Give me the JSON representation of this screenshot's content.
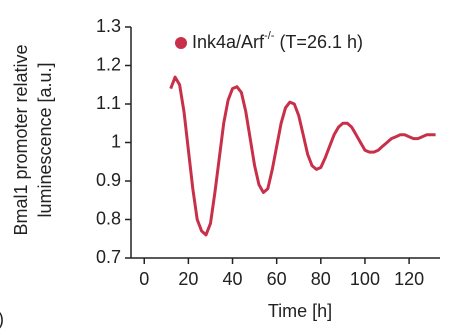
{
  "chart_data": {
    "type": "line",
    "ylabel": [
      "Bmal1 promoter relative",
      "luminescence [a.u.]"
    ],
    "xlabel": "Time [h]",
    "annotations": [
      "l)"
    ],
    "x": [
      12,
      14,
      16,
      18,
      20,
      22,
      24,
      26,
      28,
      30,
      32,
      34,
      36,
      38,
      40,
      42,
      44,
      46,
      48,
      50,
      52,
      54,
      56,
      58,
      60,
      62,
      64,
      66,
      68,
      70,
      72,
      74,
      76,
      78,
      80,
      82,
      84,
      86,
      88,
      90,
      92,
      94,
      96,
      98,
      100,
      102,
      104,
      106,
      108,
      110,
      112,
      114,
      116,
      118,
      120,
      122,
      124,
      126,
      128,
      130,
      132
    ],
    "series": [
      {
        "name": "Ink4a/Arf-/- (T=26.1 h)",
        "color": "#c8304a",
        "values": [
          1.14,
          1.17,
          1.15,
          1.08,
          0.98,
          0.88,
          0.8,
          0.77,
          0.76,
          0.79,
          0.87,
          0.96,
          1.05,
          1.11,
          1.14,
          1.145,
          1.13,
          1.08,
          1.01,
          0.94,
          0.89,
          0.87,
          0.88,
          0.93,
          0.99,
          1.05,
          1.09,
          1.105,
          1.1,
          1.07,
          1.02,
          0.97,
          0.94,
          0.93,
          0.935,
          0.96,
          0.99,
          1.02,
          1.04,
          1.05,
          1.05,
          1.04,
          1.02,
          1.0,
          0.98,
          0.975,
          0.975,
          0.98,
          0.99,
          1.0,
          1.01,
          1.015,
          1.02,
          1.02,
          1.015,
          1.01,
          1.01,
          1.015,
          1.02,
          1.02,
          1.02
        ]
      }
    ],
    "xlim": [
      -6,
      134
    ],
    "xticks": [
      0,
      20,
      40,
      60,
      80,
      100,
      120
    ],
    "ylim": [
      0.7,
      1.3
    ],
    "yticks": [
      0.7,
      0.8,
      0.9,
      1,
      1.1,
      1.2,
      1.3
    ],
    "legend": "top-right"
  }
}
